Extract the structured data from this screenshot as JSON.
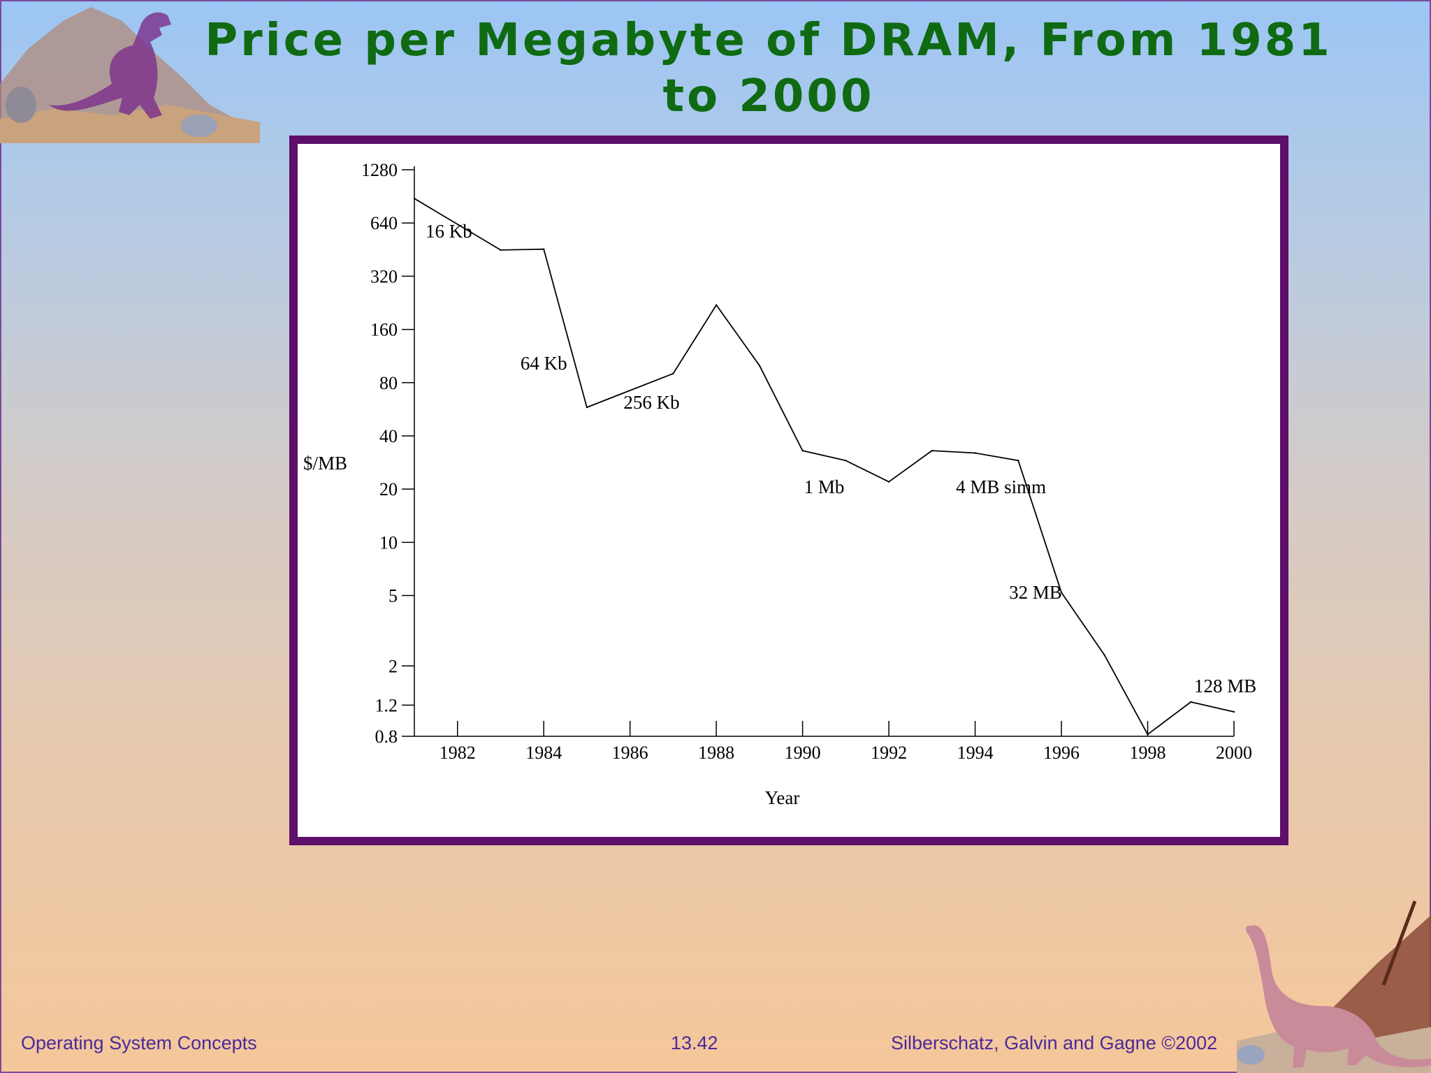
{
  "slide": {
    "title": "Price per Megabyte of DRAM, From 1981 to 2000",
    "footer_left": "Operating System Concepts",
    "footer_center": "13.42",
    "footer_right": "Silberschatz, Galvin and  Gagne ©2002",
    "title_color": "#0f6a12",
    "frame_color": "#5e0f6a",
    "decorations": [
      "trex-icon",
      "brontosaurus-icon"
    ]
  },
  "chart_data": {
    "type": "line",
    "title": "",
    "xlabel": "Year",
    "ylabel": "$/MB",
    "yscale": "log2",
    "ylim": [
      0.8,
      1280
    ],
    "xlim": [
      1981,
      2000
    ],
    "y_ticks": [
      {
        "value": 1280,
        "label": "1280"
      },
      {
        "value": 640,
        "label": "640"
      },
      {
        "value": 320,
        "label": "320"
      },
      {
        "value": 160,
        "label": "160"
      },
      {
        "value": 80,
        "label": "80"
      },
      {
        "value": 40,
        "label": "40"
      },
      {
        "value": 20,
        "label": "20"
      },
      {
        "value": 10,
        "label": "10"
      },
      {
        "value": 5,
        "label": "5"
      },
      {
        "value": 2,
        "label": "2"
      },
      {
        "value": 1.2,
        "label": "1.2"
      },
      {
        "value": 0.8,
        "label": "0.8"
      }
    ],
    "x_ticks": [
      {
        "value": 1982,
        "label": "1982"
      },
      {
        "value": 1984,
        "label": "1984"
      },
      {
        "value": 1986,
        "label": "1986"
      },
      {
        "value": 1988,
        "label": "1988"
      },
      {
        "value": 1990,
        "label": "1990"
      },
      {
        "value": 1992,
        "label": "1992"
      },
      {
        "value": 1994,
        "label": "1994"
      },
      {
        "value": 1996,
        "label": "1996"
      },
      {
        "value": 1998,
        "label": "1998"
      },
      {
        "value": 2000,
        "label": "2000"
      }
    ],
    "grid": false,
    "series": [
      {
        "x": [
          1981,
          1983,
          1984,
          1985,
          1987,
          1988,
          1989,
          1990,
          1991,
          1992,
          1993,
          1994,
          1995,
          1996,
          1997,
          1998,
          1999,
          2000
        ],
        "y": [
          880,
          450,
          455,
          58,
          90,
          220,
          100,
          33,
          29,
          22,
          33,
          32,
          29,
          5.2,
          2.3,
          0.82,
          1.25,
          1.1
        ]
      }
    ],
    "annotations": [
      {
        "text": "16 Kb",
        "x": 1981.8,
        "y": 530
      },
      {
        "text": "64 Kb",
        "x": 1984.0,
        "y": 95
      },
      {
        "text": "256 Kb",
        "x": 1986.5,
        "y": 57
      },
      {
        "text": "1 Mb",
        "x": 1990.5,
        "y": 19
      },
      {
        "text": "4 MB simm",
        "x": 1994.6,
        "y": 19
      },
      {
        "text": "32 MB",
        "x": 1995.4,
        "y": 4.8
      },
      {
        "text": "128 MB",
        "x": 1999.8,
        "y": 1.42
      }
    ]
  }
}
